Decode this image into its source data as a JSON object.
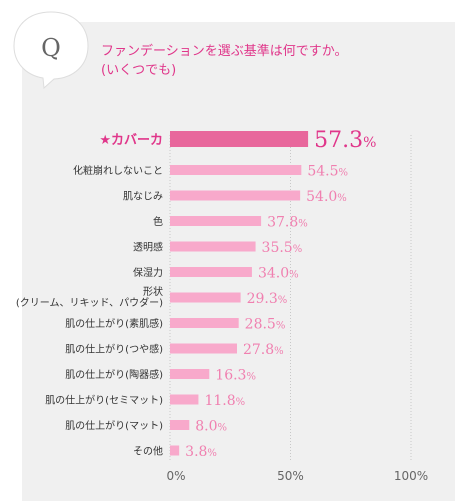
{
  "question": {
    "badge": "Q",
    "line1": "ファンデーションを選ぶ基準は何ですか。",
    "line2": "(いくつでも)"
  },
  "chart_data": {
    "type": "bar",
    "orientation": "horizontal",
    "title": "",
    "xlabel": "",
    "ylabel": "",
    "xlim": [
      0,
      100
    ],
    "value_suffix": "%",
    "x_ticks": [
      {
        "value": 0,
        "label": "0%"
      },
      {
        "value": 50,
        "label": "50%"
      },
      {
        "value": 100,
        "label": "100%"
      }
    ],
    "grid": "vertical-dotted",
    "categories": [
      "★カバーカ",
      "化粧崩れしないこと",
      "肌なじみ",
      "色",
      "透明感",
      "保湿力",
      "形状\n(クリーム、リキッド、パウダー)",
      "肌の仕上がり(素肌感)",
      "肌の仕上がり(つや感)",
      "肌の仕上がり(陶器感)",
      "肌の仕上がり(セミマット)",
      "肌の仕上がり(マット)",
      "その他"
    ],
    "values": [
      57.3,
      54.5,
      54.0,
      37.8,
      35.5,
      34.0,
      29.3,
      28.5,
      27.8,
      16.3,
      11.8,
      8.0,
      3.8
    ],
    "highlight_index": 0,
    "colors": {
      "highlight_bar": "#e8679c",
      "bar": "#f8a9cb",
      "highlight_label": "#e0368a",
      "value_text": "#f080b0",
      "highlight_value_text": "#e0368a",
      "category_text": "#333333",
      "axis_text": "#666666"
    }
  }
}
